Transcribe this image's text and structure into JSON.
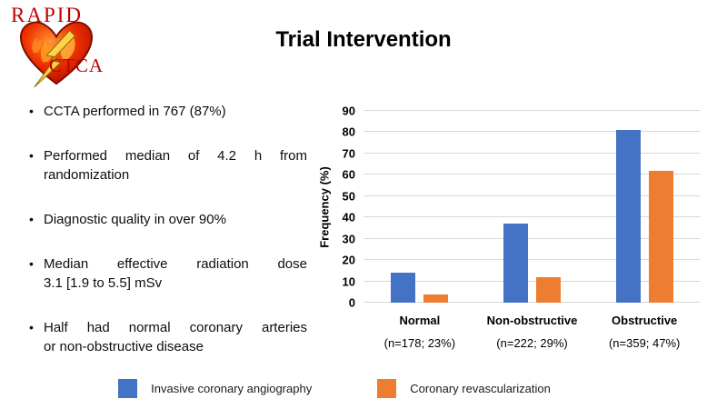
{
  "logo": {
    "top_text": "RAPID",
    "bottom_text": "CTCA"
  },
  "title": "Trial Intervention",
  "bullets": [
    [
      "CCTA performed in 767 (87%)"
    ],
    [
      "Performed median of 4.2 h from",
      "randomization"
    ],
    [
      "Diagnostic quality in over 90%"
    ],
    [
      "Median effective radiation dose",
      "3.1 [1.9 to 5.5] mSv"
    ],
    [
      "Half had normal coronary arteries",
      "or non-obstructive disease"
    ]
  ],
  "chart_data": {
    "type": "bar",
    "title": "",
    "xlabel": "",
    "ylabel": "Frequency (%)",
    "ylim": [
      0,
      90
    ],
    "yticks": [
      0,
      10,
      20,
      30,
      40,
      50,
      60,
      70,
      80,
      90
    ],
    "grid": true,
    "legend_position": "bottom",
    "categories": [
      "Normal",
      "Non-obstructive",
      "Obstructive"
    ],
    "category_sublabels": [
      "(n=178; 23%)",
      "(n=222; 29%)",
      "(n=359; 47%)"
    ],
    "series": [
      {
        "name": "Invasive coronary angiography",
        "color": "#4472C4",
        "values": [
          14,
          37,
          81
        ]
      },
      {
        "name": "Coronary revascularization",
        "color": "#ED7D31",
        "values": [
          4,
          12,
          62
        ]
      }
    ]
  },
  "colors": {
    "bar_blue": "#4472C4",
    "bar_orange": "#ED7D31",
    "gridline": "#D9D9D9",
    "logo_red": "#C00000"
  }
}
